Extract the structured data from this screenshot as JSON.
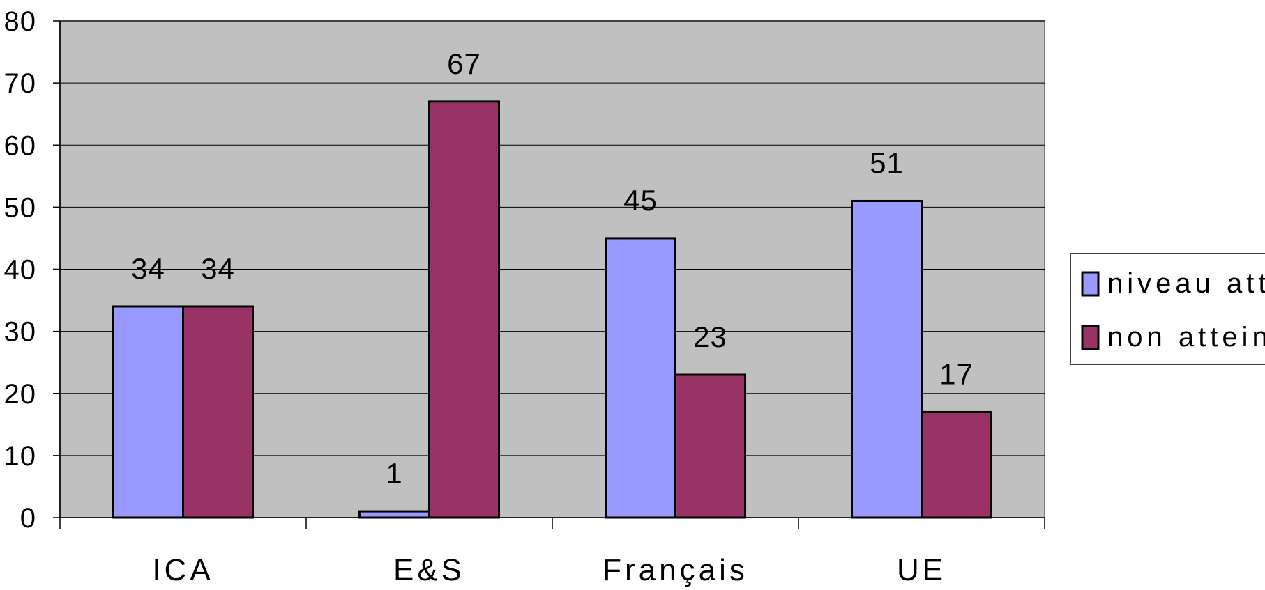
{
  "chart_data": {
    "type": "bar",
    "categories": [
      "ICA",
      "E&S",
      "Français",
      "UE"
    ],
    "series": [
      {
        "name": "niveau attein",
        "values": [
          34,
          1,
          45,
          51
        ],
        "color": "#9999ff"
      },
      {
        "name": "non atteint",
        "values": [
          34,
          67,
          23,
          17
        ],
        "color": "#993366"
      }
    ],
    "ylim": [
      0,
      80
    ],
    "yticks": [
      "0",
      "10",
      "20",
      "30",
      "40",
      "50",
      "60",
      "70",
      "80"
    ],
    "grid": true,
    "legend": "right",
    "plot_background": "#c0c0c0",
    "data_labels": true
  }
}
